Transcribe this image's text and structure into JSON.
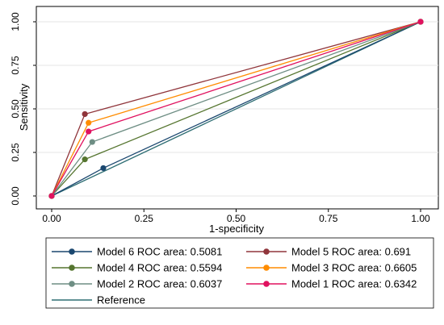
{
  "chart_data": {
    "type": "line",
    "xlabel": "1-specificity",
    "ylabel": "Sensitivity",
    "xlim": [
      0,
      1
    ],
    "ylim": [
      0,
      1
    ],
    "x_ticks": [
      "0.00",
      "0.25",
      "0.50",
      "0.75",
      "1.00"
    ],
    "y_ticks": [
      "0.00",
      "0.25",
      "0.50",
      "0.75",
      "1.00"
    ],
    "grid": "horizontal",
    "legend_position": "bottom",
    "series": [
      {
        "name": "Model 6 ROC area: 0.5081",
        "color": "#1a476f",
        "points": [
          [
            0,
            0
          ],
          [
            0.14,
            0.16
          ],
          [
            1,
            1
          ]
        ]
      },
      {
        "name": "Model 5 ROC area: 0.691",
        "color": "#90353b",
        "points": [
          [
            0,
            0
          ],
          [
            0.09,
            0.47
          ],
          [
            1,
            1
          ]
        ]
      },
      {
        "name": "Model 4 ROC area: 0.5594",
        "color": "#55752f",
        "points": [
          [
            0,
            0
          ],
          [
            0.09,
            0.21
          ],
          [
            1,
            1
          ]
        ]
      },
      {
        "name": "Model 3 ROC area: 0.6605",
        "color": "#ff8c00",
        "points": [
          [
            0,
            0
          ],
          [
            0.1,
            0.42
          ],
          [
            1,
            1
          ]
        ]
      },
      {
        "name": "Model 2 ROC area: 0.6037",
        "color": "#6e8e84",
        "points": [
          [
            0,
            0
          ],
          [
            0.11,
            0.31
          ],
          [
            1,
            1
          ]
        ]
      },
      {
        "name": "Model 1 ROC area: 0.6342",
        "color": "#e0115f",
        "points": [
          [
            0,
            0
          ],
          [
            0.1,
            0.37
          ],
          [
            1,
            1
          ]
        ]
      },
      {
        "name": "Reference",
        "color": "#2f6e74",
        "points": [
          [
            0,
            0
          ],
          [
            1,
            1
          ]
        ],
        "reference": true
      }
    ]
  }
}
